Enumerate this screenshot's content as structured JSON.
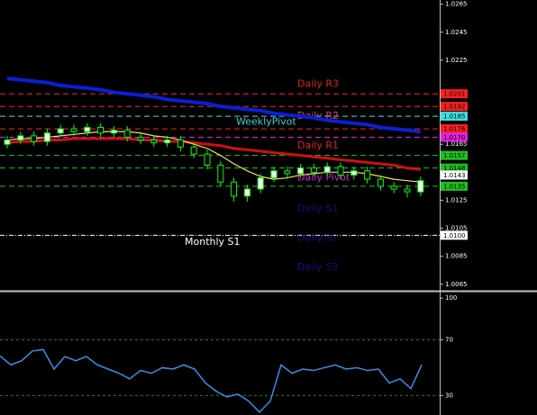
{
  "chart_data": [
    {
      "type": "candlestick",
      "ylim": [
        1.0061,
        1.0268
      ],
      "yticks": [
        1.0265,
        1.0245,
        1.0225,
        1.0165,
        1.0125,
        1.0105,
        1.0085,
        1.0065
      ],
      "bull_color": "#00ff00",
      "bear_color": "#00ff00",
      "open": [
        1.0165,
        1.0168,
        1.0171,
        1.0167,
        1.0173,
        1.0176,
        1.0174,
        1.0177,
        1.0173,
        1.0175,
        1.017,
        1.0168,
        1.0166,
        1.0168,
        1.0163,
        1.0158,
        1.015,
        1.0138,
        1.0128,
        1.0133,
        1.0141,
        1.0146,
        1.0144,
        1.0148,
        1.0145,
        1.0149,
        1.0143,
        1.0146,
        1.014,
        1.0135,
        1.0133,
        1.0131
      ],
      "high": [
        1.0171,
        1.0174,
        1.0174,
        1.0176,
        1.0179,
        1.0179,
        1.018,
        1.018,
        1.0178,
        1.0178,
        1.0173,
        1.0171,
        1.0171,
        1.0171,
        1.0166,
        1.0161,
        1.0153,
        1.0141,
        1.0136,
        1.0144,
        1.0149,
        1.0149,
        1.0151,
        1.0151,
        1.0152,
        1.0152,
        1.0149,
        1.0149,
        1.0143,
        1.0138,
        1.0136,
        1.0142
      ],
      "low": [
        1.0162,
        1.0165,
        1.0164,
        1.0164,
        1.017,
        1.0171,
        1.0171,
        1.017,
        1.017,
        1.0167,
        1.0165,
        1.0163,
        1.0163,
        1.016,
        1.0155,
        1.0147,
        1.0135,
        1.0124,
        1.0124,
        1.013,
        1.0138,
        1.0141,
        1.0141,
        1.0142,
        1.0142,
        1.014,
        1.014,
        1.0137,
        1.0132,
        1.013,
        1.0127,
        1.0128
      ],
      "close": [
        1.0168,
        1.0171,
        1.0167,
        1.0173,
        1.0176,
        1.0174,
        1.0177,
        1.0173,
        1.0175,
        1.017,
        1.0168,
        1.0166,
        1.0168,
        1.0163,
        1.0158,
        1.015,
        1.0138,
        1.0128,
        1.0133,
        1.0141,
        1.0146,
        1.0144,
        1.0148,
        1.0145,
        1.0149,
        1.0143,
        1.0146,
        1.014,
        1.0135,
        1.0133,
        1.0131,
        1.0139
      ],
      "series": [
        {
          "color": "#0a1fd6",
          "width": 4,
          "values": [
            1.0212,
            1.0211,
            1.021,
            1.0209,
            1.0207,
            1.0206,
            1.0205,
            1.0204,
            1.0202,
            1.0201,
            1.02,
            1.0199,
            1.0197,
            1.0196,
            1.0195,
            1.0194,
            1.0192,
            1.0191,
            1.019,
            1.0189,
            1.0187,
            1.0186,
            1.0185,
            1.0184,
            1.0182,
            1.0181,
            1.018,
            1.0179,
            1.0177,
            1.0176,
            1.0175,
            1.0174
          ]
        },
        {
          "color": "#d01010",
          "width": 3,
          "values": [
            1.0166,
            1.0167,
            1.0167,
            1.0168,
            1.0168,
            1.0169,
            1.0169,
            1.0169,
            1.0169,
            1.0169,
            1.0168,
            1.0168,
            1.0167,
            1.0167,
            1.0166,
            1.0165,
            1.0164,
            1.0162,
            1.0161,
            1.016,
            1.0159,
            1.0158,
            1.0157,
            1.0156,
            1.0155,
            1.0154,
            1.0153,
            1.0152,
            1.0151,
            1.015,
            1.0148,
            1.0147
          ]
        },
        {
          "color": "#f0e060",
          "width": 1.2,
          "values": [
            1.0168,
            1.0169,
            1.0169,
            1.017,
            1.0171,
            1.0172,
            1.0173,
            1.0174,
            1.0174,
            1.0174,
            1.0173,
            1.0171,
            1.017,
            1.0168,
            1.0165,
            1.0162,
            1.0157,
            1.0151,
            1.0146,
            1.0142,
            1.014,
            1.0141,
            1.0143,
            1.0144,
            1.0145,
            1.0145,
            1.0145,
            1.0144,
            1.0142,
            1.014,
            1.0139,
            1.0138
          ]
        }
      ],
      "levels": [
        {
          "price": 1.0201,
          "color": "#ff2020",
          "style": "dashed"
        },
        {
          "price": 1.0192,
          "color": "#ff2020",
          "style": "dashed"
        },
        {
          "price": 1.0185,
          "color": "#40e0e0",
          "style": "dashed"
        },
        {
          "price": 1.0176,
          "color": "#ff2020",
          "style": "dashed"
        },
        {
          "price": 1.017,
          "price_label": "1.0170",
          "color": "#e020e0",
          "style": "dashed"
        },
        {
          "price": 1.0157,
          "color": "#20c020",
          "style": "dashed"
        },
        {
          "price": 1.0148,
          "color": "#20c020",
          "style": "dashed"
        },
        {
          "price": 1.0143,
          "color": "#ffffff",
          "style": "none"
        },
        {
          "price": 1.0135,
          "color": "#20c020",
          "style": "dashed"
        },
        {
          "price": 1.01,
          "price_label": "1.0100",
          "color": "#ffffff",
          "style": "dashdot"
        }
      ],
      "pivot_labels": [
        {
          "text": "Daily R3",
          "price": 1.0208,
          "color": "#e02020"
        },
        {
          "text": "Daily R2",
          "price": 1.0185,
          "color": "#e04080"
        },
        {
          "text": "WeeklyPivot",
          "price": 1.0181,
          "color": "#40d0d0"
        },
        {
          "text": "Daily R1",
          "price": 1.0164,
          "color": "#e02020"
        },
        {
          "text": "Daily Pivot",
          "price": 1.0141,
          "color": "#d020d0"
        },
        {
          "text": "Daily S1",
          "price": 1.0119,
          "color": "#101080"
        },
        {
          "text": "Daily S2",
          "price": 1.0098,
          "color": "#101080"
        },
        {
          "text": "Daily S3",
          "price": 1.0077,
          "color": "#101080"
        },
        {
          "text": "Monthly S1",
          "price": 1.0095,
          "color": "#ffffff"
        }
      ]
    },
    {
      "type": "line",
      "ylim": [
        16,
        104
      ],
      "yticks": [
        100,
        70,
        30
      ],
      "grid_ticks": [
        70,
        30
      ],
      "grid_color": "#208020",
      "color": "#3a8ee6",
      "values": [
        58.5,
        52,
        55,
        62,
        63,
        49,
        58,
        55,
        58,
        52,
        49,
        46,
        42,
        48,
        46,
        50,
        49,
        52,
        49,
        39,
        33,
        29,
        31,
        26,
        18,
        26,
        52,
        46,
        49,
        48,
        50,
        52,
        49,
        50,
        48,
        49,
        39,
        42,
        35,
        52
      ]
    }
  ]
}
